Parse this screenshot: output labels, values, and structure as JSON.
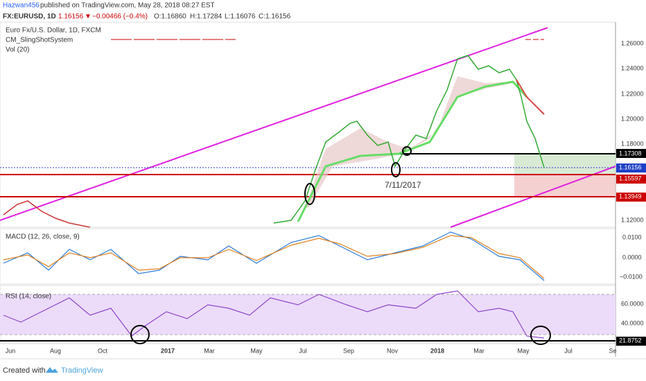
{
  "header": {
    "author": "Hazwan456",
    "published": "published on TradingView.com, May 28, 2018 08:27 EST"
  },
  "ticker": {
    "symbol": "FX:EURUSD, 1D",
    "last": "1.16156",
    "arrow": "▼",
    "change": "−0.00466 (−0.4%)",
    "open": "O:1.16860",
    "high": "H:1.17284",
    "low": "L:1.16076",
    "close": "C:1.16156"
  },
  "legend": [
    "Euro Fx/U.S. Dollar, 1D, FXCM",
    "CM_SlingShotSystem",
    "Vol (20)"
  ],
  "price_axis": [
    "1.26000",
    "1.24000",
    "1.22000",
    "1.20000",
    "1.18000",
    "1.12000"
  ],
  "price_tags": [
    "1.17308",
    "1.16156",
    "1.15597",
    "1.13949"
  ],
  "annotation": "7/11/2017",
  "macd": {
    "title": "MACD (12, 26, close, 9)",
    "axis": [
      "0.0100",
      "0.0000",
      "−0.0100"
    ]
  },
  "rsi": {
    "title": "RSI (14, close)",
    "axis": [
      "60.0000",
      "40.0000"
    ],
    "tag": "21.8752"
  },
  "time_axis": [
    "Jun",
    "Aug",
    "Oct",
    "2017",
    "Mar",
    "May",
    "Jul",
    "Sep",
    "Nov",
    "2018",
    "Mar",
    "May",
    "Jul",
    "Se"
  ],
  "footer": {
    "created": "Created with",
    "brand": "TradingView"
  }
}
